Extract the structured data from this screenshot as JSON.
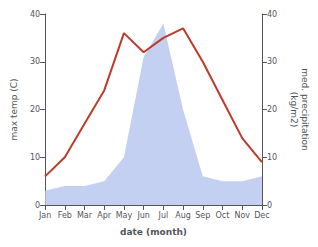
{
  "chart_data": {
    "type": "line",
    "categories": [
      "Jan",
      "Feb",
      "Mar",
      "Apr",
      "May",
      "Jun",
      "Jul",
      "Aug",
      "Sep",
      "Oct",
      "Nov",
      "Dec"
    ],
    "series": [
      {
        "type": "area",
        "color": "#b8c8ee",
        "axis": "y2",
        "values": [
          3,
          4,
          4,
          5,
          10,
          31,
          38,
          20,
          6,
          5,
          5,
          6
        ]
      },
      {
        "type": "line",
        "color": "#c0392b",
        "values": [
          6,
          10,
          17,
          24,
          36,
          32,
          35,
          37,
          30,
          22,
          14,
          9
        ]
      }
    ],
    "xlabel": "date (month)",
    "ylabel": "max temp (C)",
    "y2label": "med. precipitation\n(kg/m2)",
    "ylim": [
      0,
      40
    ],
    "yticks": [
      0,
      10,
      20,
      30,
      40
    ],
    "y2lim": [
      0,
      40
    ],
    "y2ticks": [
      0,
      10,
      20,
      30,
      40
    ],
    "grid": false
  }
}
